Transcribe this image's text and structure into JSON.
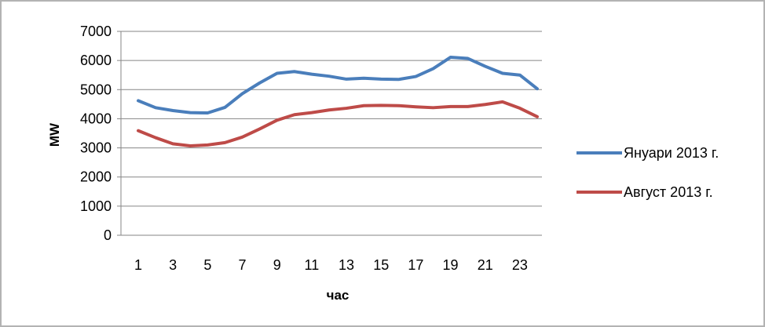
{
  "chart_data": {
    "type": "line",
    "title": "",
    "xlabel": "час",
    "ylabel": "MW",
    "ylim": [
      0,
      7000
    ],
    "yticks": [
      "0",
      "1000",
      "2000",
      "3000",
      "4000",
      "5000",
      "6000",
      "7000"
    ],
    "x": [
      1,
      2,
      3,
      4,
      5,
      6,
      7,
      8,
      9,
      10,
      11,
      12,
      13,
      14,
      15,
      16,
      17,
      18,
      19,
      20,
      21,
      22,
      23,
      24
    ],
    "xtick_labels": [
      "1",
      "3",
      "5",
      "7",
      "9",
      "11",
      "13",
      "15",
      "17",
      "19",
      "21",
      "23"
    ],
    "grid": "horizontal",
    "legend_position": "right",
    "series": [
      {
        "name": "Януари 2013 г.",
        "color": "#4a7ebb",
        "values": [
          4620,
          4380,
          4280,
          4210,
          4200,
          4390,
          4860,
          5230,
          5560,
          5620,
          5530,
          5460,
          5360,
          5390,
          5360,
          5350,
          5450,
          5720,
          6110,
          6070,
          5800,
          5560,
          5500,
          5030
        ]
      },
      {
        "name": "Август 2013 г.",
        "color": "#be4b48",
        "values": [
          3590,
          3350,
          3140,
          3070,
          3100,
          3180,
          3370,
          3650,
          3950,
          4140,
          4210,
          4300,
          4360,
          4450,
          4460,
          4450,
          4410,
          4380,
          4420,
          4420,
          4490,
          4580,
          4360,
          4070
        ]
      }
    ]
  }
}
